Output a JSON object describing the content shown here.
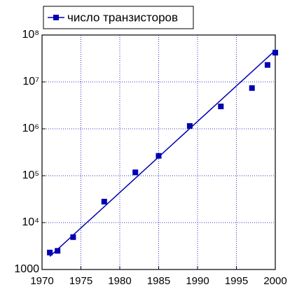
{
  "chart_data": {
    "type": "scatter",
    "x": [
      1971,
      1972,
      1974,
      1978,
      1982,
      1985,
      1989,
      1993,
      1997,
      1999,
      2000
    ],
    "series": [
      {
        "name": "число транзисторов",
        "color": "#0000b0",
        "values": [
          2300,
          2500,
          4900,
          28000,
          118000,
          265000,
          1150000,
          3000000,
          7400000,
          23000000,
          42000000
        ]
      }
    ],
    "fit": {
      "x": [
        1971,
        2000
      ],
      "values": [
        1900,
        47000000
      ],
      "color": "#0000b0"
    },
    "xlim": [
      1970,
      2000
    ],
    "xticks": [
      1970,
      1975,
      1980,
      1985,
      1990,
      1995,
      2000
    ],
    "ylim": [
      1000,
      100000000
    ],
    "ylog": true,
    "yticks": [
      1000,
      {
        "value": 10000,
        "label": "10⁴"
      },
      {
        "value": 100000,
        "label": "10⁵"
      },
      {
        "value": 1000000,
        "label": "10⁶"
      },
      {
        "value": 10000000,
        "label": "10⁷"
      },
      {
        "value": 100000000,
        "label": "10⁸"
      }
    ],
    "grid": true,
    "legend": "top-left"
  }
}
